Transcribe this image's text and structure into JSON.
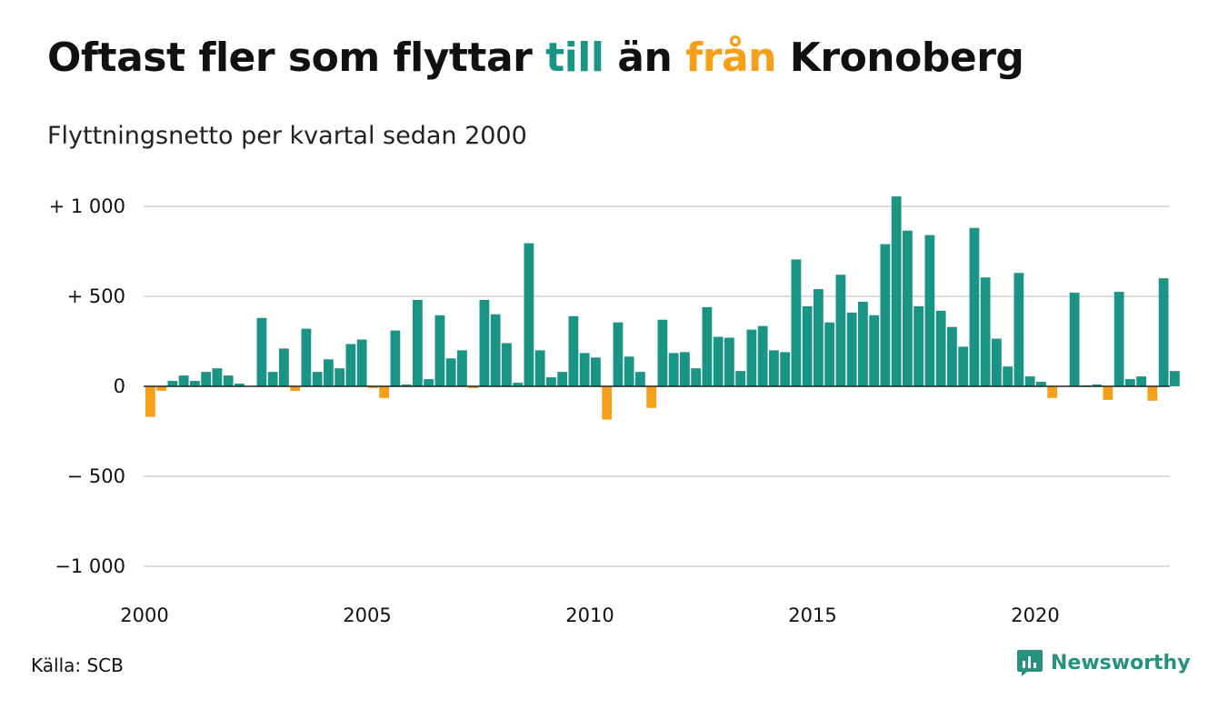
{
  "title": {
    "part1": "Oftast fler som flyttar ",
    "till": "till",
    "part2": " än ",
    "fran": "från",
    "part3": " Kronoberg"
  },
  "subtitle": "Flyttningsnetto per kvartal sedan 2000",
  "source": "Källa: SCB",
  "brand": "Newsworthy",
  "colors": {
    "positive": "#1a9484",
    "negative": "#f6a01a",
    "grid": "#dddddd",
    "axis": "#222222",
    "brand": "#26927e"
  },
  "chart_data": {
    "type": "bar",
    "ylim": [
      -1000,
      1000
    ],
    "yticks": [
      {
        "value": 1000,
        "label": "+ 1 000"
      },
      {
        "value": 500,
        "label": "+   500"
      },
      {
        "value": 0,
        "label": "0"
      },
      {
        "value": -500,
        "label": "−  500"
      },
      {
        "value": -1000,
        "label": "−1 000"
      }
    ],
    "xticks": [
      "2000",
      "2005",
      "2010",
      "2015",
      "2020"
    ],
    "start_year": 2000,
    "grid": true,
    "values": [
      -170,
      -25,
      30,
      60,
      30,
      80,
      100,
      60,
      15,
      0,
      380,
      80,
      210,
      -25,
      320,
      80,
      150,
      100,
      235,
      260,
      -10,
      -65,
      310,
      10,
      480,
      40,
      395,
      155,
      200,
      -10,
      480,
      400,
      240,
      20,
      795,
      200,
      50,
      80,
      390,
      185,
      160,
      -185,
      355,
      165,
      80,
      -120,
      370,
      185,
      190,
      100,
      440,
      275,
      270,
      85,
      315,
      335,
      200,
      190,
      705,
      445,
      540,
      355,
      620,
      410,
      470,
      395,
      790,
      1055,
      865,
      445,
      840,
      420,
      330,
      220,
      880,
      605,
      265,
      110,
      630,
      55,
      25,
      -65,
      0,
      520,
      5,
      10,
      -75,
      525,
      40,
      55,
      -80,
      600,
      85
    ]
  }
}
